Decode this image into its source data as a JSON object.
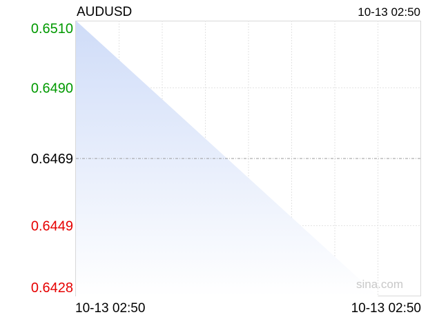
{
  "chart_data": {
    "type": "area",
    "title": "AUDUSD",
    "timestamp": "10-13 02:50",
    "watermark": "sina.com",
    "x_labels": [
      "10-13 02:50",
      "10-13 02:50"
    ],
    "y_ticks": [
      {
        "label": "0.6510",
        "value": 0.651,
        "color": "#009900"
      },
      {
        "label": "0.6490",
        "value": 0.649,
        "color": "#009900"
      },
      {
        "label": "0.6469",
        "value": 0.6469,
        "color": "#000000"
      },
      {
        "label": "0.6449",
        "value": 0.6449,
        "color": "#e60000"
      },
      {
        "label": "0.6428",
        "value": 0.6428,
        "color": "#e60000"
      }
    ],
    "ylim": [
      0.6428,
      0.651
    ],
    "reference_value": 0.6469,
    "grid": true,
    "vertical_grid_lines": 7,
    "series": [
      {
        "values": [
          0.651,
          0.6428
        ],
        "fill_color": "#cfdcf8"
      }
    ]
  }
}
